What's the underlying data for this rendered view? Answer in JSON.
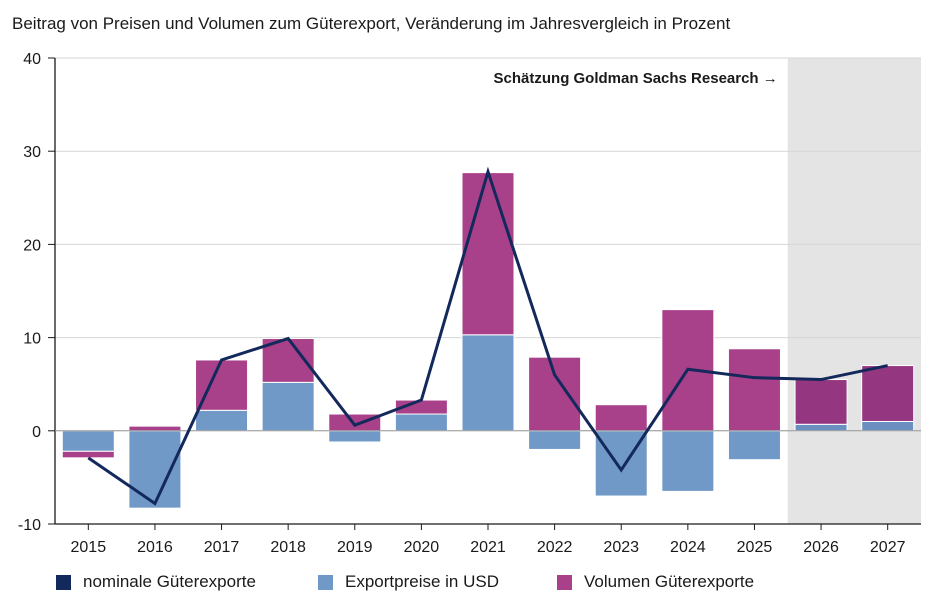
{
  "chart_data": {
    "type": "bar",
    "title": "Beitrag von Preisen und Volumen zum Güterexport, Veränderung im Jahresvergleich in Prozent",
    "categories": [
      "2015",
      "2016",
      "2017",
      "2018",
      "2019",
      "2020",
      "2021",
      "2022",
      "2023",
      "2024",
      "2025",
      "2026",
      "2027"
    ],
    "ylim": [
      -10,
      40
    ],
    "yticks": [
      -10,
      0,
      10,
      20,
      30,
      40
    ],
    "grid": true,
    "stacked": true,
    "forecast": {
      "start_category": "2026",
      "label": "Schätzung Goldman Sachs Research →",
      "shade_color": "#e4e4e4"
    },
    "series": [
      {
        "name": "Exportpreise in USD",
        "type": "bar",
        "color": "#7099c8",
        "forecast_color": "#6a8fc0",
        "values": [
          -2.2,
          -8.3,
          2.2,
          5.2,
          -1.2,
          1.8,
          10.3,
          -2.0,
          -7.0,
          -6.5,
          -3.1,
          0.7,
          1.0
        ]
      },
      {
        "name": "Volumen Güterexporte",
        "type": "bar",
        "color": "#a8408a",
        "forecast_color": "#953680",
        "values": [
          -0.7,
          0.5,
          5.4,
          4.7,
          1.8,
          1.5,
          17.4,
          7.9,
          2.8,
          13.0,
          8.8,
          4.8,
          6.0
        ]
      },
      {
        "name": "nominale Güterexporte",
        "type": "line",
        "color": "#13295b",
        "values": [
          -2.9,
          -7.8,
          7.6,
          9.9,
          0.6,
          3.3,
          27.8,
          6.0,
          -4.2,
          6.6,
          5.7,
          5.5,
          7.0
        ]
      }
    ],
    "legend": {
      "position": "bottom",
      "items": [
        {
          "label": "nominale Güterexporte",
          "color": "#13295b"
        },
        {
          "label": "Exportpreise in USD",
          "color": "#7099c8"
        },
        {
          "label": "Volumen Güterexporte",
          "color": "#a8408a"
        }
      ]
    }
  }
}
